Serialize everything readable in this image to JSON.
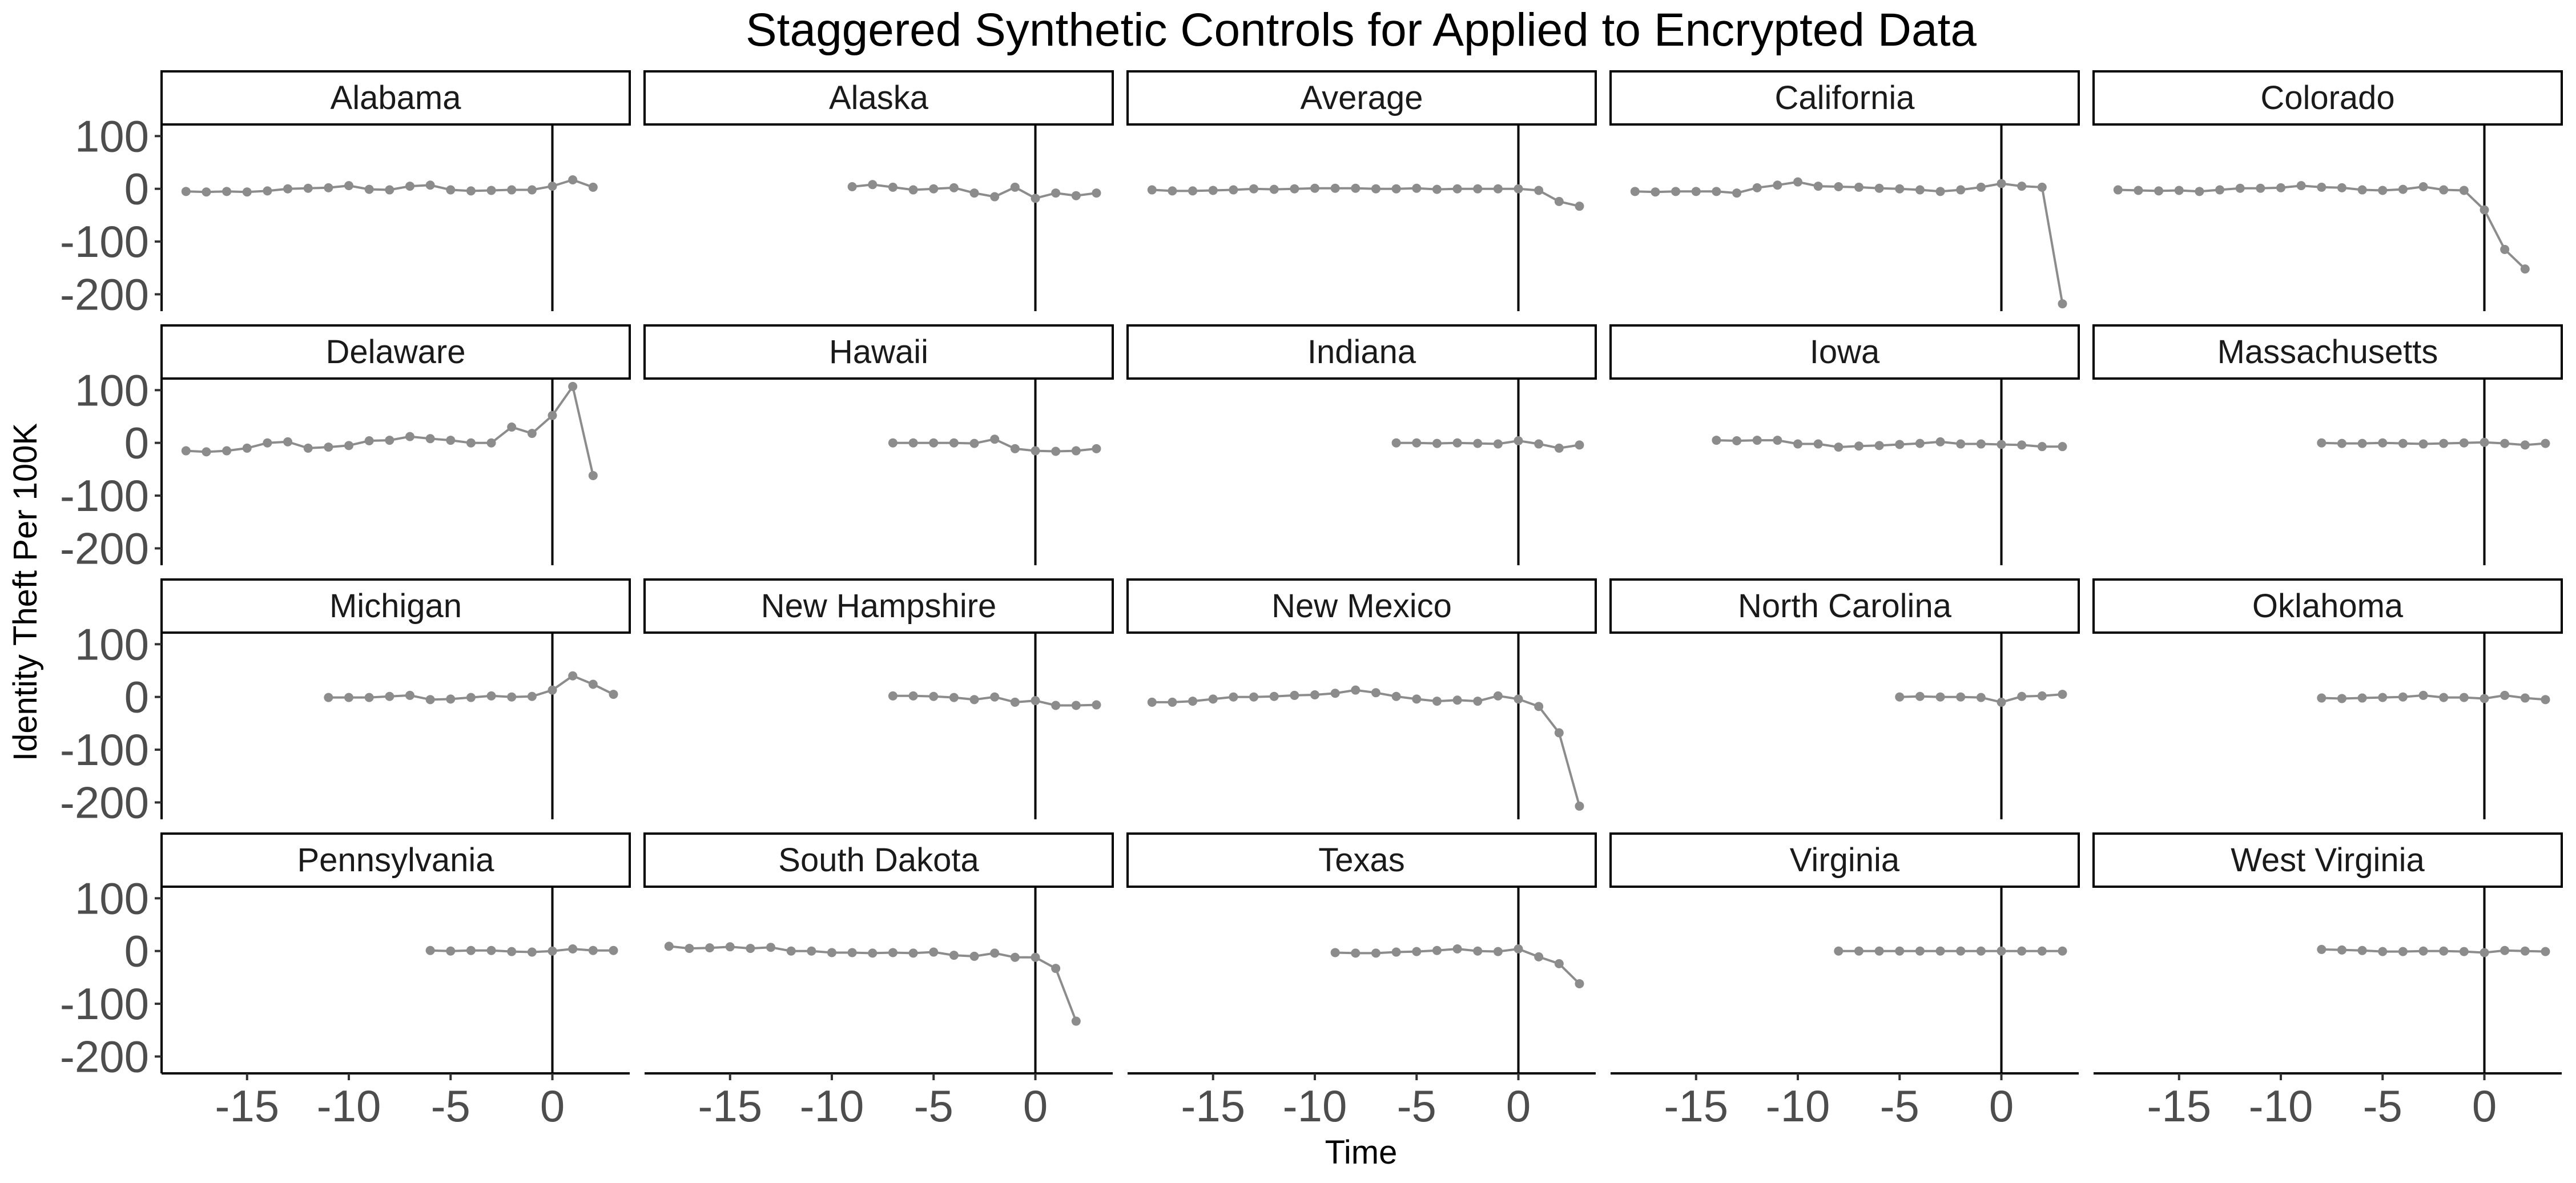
{
  "chart_data": {
    "type": "line",
    "title": "Staggered Synthetic Controls for Applied to Encrypted Data",
    "xlabel": "Time",
    "ylabel": "Identity Theft Per 100K",
    "xlim": [
      -19.2,
      3.8
    ],
    "ylim": [
      -232,
      122
    ],
    "x_ticks": [
      -15,
      -10,
      -5,
      0
    ],
    "x_tick_labels": [
      "-15",
      "-10",
      "-5",
      "0"
    ],
    "y_ticks": [
      100,
      0,
      -100,
      -200
    ],
    "y_tick_labels": [
      "100",
      "0",
      "-100",
      "-200"
    ],
    "reference_line_x": 0,
    "grid": false,
    "layout": {
      "rows": 4,
      "cols": 5
    },
    "series_color": "#8c8c8c",
    "panels": [
      {
        "name": "Alabama",
        "x": [
          -18,
          -17,
          -16,
          -15,
          -14,
          -13,
          -12,
          -11,
          -10,
          -9,
          -8,
          -7,
          -6,
          -5,
          -4,
          -3,
          -2,
          -1,
          0,
          1,
          2
        ],
        "y": [
          -5,
          -6,
          -5,
          -6,
          -4,
          0,
          1,
          2,
          6,
          -1,
          -2,
          5,
          7,
          -2,
          -4,
          -3,
          -2,
          -2,
          5,
          17,
          3
        ]
      },
      {
        "name": "Alaska",
        "x": [
          -9,
          -8,
          -7,
          -6,
          -5,
          -4,
          -3,
          -2,
          -1,
          0,
          1,
          2,
          3
        ],
        "y": [
          4,
          8,
          3,
          -2,
          0,
          2,
          -8,
          -15,
          3,
          -18,
          -8,
          -13,
          -8
        ]
      },
      {
        "name": "Average",
        "x": [
          -18,
          -17,
          -16,
          -15,
          -14,
          -13,
          -12,
          -11,
          -10,
          -9,
          -8,
          -7,
          -6,
          -5,
          -4,
          -3,
          -2,
          -1,
          0,
          1,
          2,
          3
        ],
        "y": [
          -2,
          -4,
          -4,
          -3,
          -2,
          0,
          -1,
          0,
          1,
          1,
          1,
          0,
          0,
          1,
          -1,
          0,
          0,
          0,
          0,
          -3,
          -24,
          -33
        ]
      },
      {
        "name": "California",
        "x": [
          -18,
          -17,
          -16,
          -15,
          -14,
          -13,
          -12,
          -11,
          -10,
          -9,
          -8,
          -7,
          -6,
          -5,
          -4,
          -3,
          -2,
          -1,
          0,
          1,
          2,
          3
        ],
        "y": [
          -5,
          -6,
          -5,
          -5,
          -5,
          -8,
          2,
          7,
          13,
          5,
          4,
          3,
          1,
          0,
          -2,
          -5,
          -2,
          3,
          10,
          5,
          3,
          -218
        ]
      },
      {
        "name": "Colorado",
        "x": [
          -18,
          -17,
          -16,
          -15,
          -14,
          -13,
          -12,
          -11,
          -10,
          -9,
          -8,
          -7,
          -6,
          -5,
          -4,
          -3,
          -2,
          -1,
          0,
          1,
          2
        ],
        "y": [
          -2,
          -3,
          -4,
          -3,
          -5,
          -2,
          1,
          1,
          2,
          6,
          3,
          2,
          -2,
          -3,
          -1,
          4,
          -2,
          -3,
          -40,
          -115,
          -152
        ]
      },
      {
        "name": "Delaware",
        "x": [
          -18,
          -17,
          -16,
          -15,
          -14,
          -13,
          -12,
          -11,
          -10,
          -9,
          -8,
          -7,
          -6,
          -5,
          -4,
          -3,
          -2,
          -1,
          0,
          1,
          2
        ],
        "y": [
          -15,
          -17,
          -15,
          -10,
          0,
          2,
          -10,
          -8,
          -5,
          4,
          5,
          12,
          8,
          5,
          0,
          0,
          30,
          18,
          52,
          107,
          -62
        ]
      },
      {
        "name": "Hawaii",
        "x": [
          -7,
          -6,
          -5,
          -4,
          -3,
          -2,
          -1,
          0,
          1,
          2,
          3
        ],
        "y": [
          0,
          0,
          0,
          0,
          -1,
          7,
          -11,
          -15,
          -16,
          -15,
          -11
        ]
      },
      {
        "name": "Indiana",
        "x": [
          -6,
          -5,
          -4,
          -3,
          -2,
          -1,
          0,
          1,
          2,
          3
        ],
        "y": [
          0,
          0,
          -1,
          0,
          -1,
          -2,
          4,
          -2,
          -10,
          -4
        ]
      },
      {
        "name": "Iowa",
        "x": [
          -14,
          -13,
          -12,
          -11,
          -10,
          -9,
          -8,
          -7,
          -6,
          -5,
          -4,
          -3,
          -2,
          -1,
          0,
          1,
          2,
          3
        ],
        "y": [
          5,
          4,
          5,
          5,
          -2,
          -2,
          -8,
          -6,
          -5,
          -3,
          -1,
          2,
          -2,
          -2,
          -3,
          -4,
          -7,
          -7
        ]
      },
      {
        "name": "Massachusetts",
        "x": [
          -8,
          -7,
          -6,
          -5,
          -4,
          -3,
          -2,
          -1,
          0,
          1,
          2,
          3
        ],
        "y": [
          0,
          -1,
          -1,
          0,
          -1,
          -2,
          -1,
          0,
          1,
          -1,
          -4,
          -1
        ]
      },
      {
        "name": "Michigan",
        "x": [
          -11,
          -10,
          -9,
          -8,
          -7,
          -6,
          -5,
          -4,
          -3,
          -2,
          -1,
          0,
          1,
          2,
          3
        ],
        "y": [
          -1,
          -1,
          -1,
          1,
          3,
          -5,
          -4,
          -1,
          2,
          0,
          1,
          13,
          40,
          24,
          5
        ]
      },
      {
        "name": "New Hampshire",
        "x": [
          -7,
          -6,
          -5,
          -4,
          -3,
          -2,
          -1,
          0,
          1,
          2,
          3
        ],
        "y": [
          2,
          2,
          1,
          -1,
          -5,
          0,
          -10,
          -7,
          -16,
          -16,
          -15
        ]
      },
      {
        "name": "New Mexico",
        "x": [
          -18,
          -17,
          -16,
          -15,
          -14,
          -13,
          -12,
          -11,
          -10,
          -9,
          -8,
          -7,
          -6,
          -5,
          -4,
          -3,
          -2,
          -1,
          0,
          1,
          2,
          3
        ],
        "y": [
          -10,
          -10,
          -8,
          -4,
          0,
          0,
          1,
          3,
          4,
          7,
          13,
          8,
          1,
          -4,
          -8,
          -6,
          -8,
          2,
          -4,
          -18,
          -68,
          -207
        ]
      },
      {
        "name": "North Carolina",
        "x": [
          -5,
          -4,
          -3,
          -2,
          -1,
          0,
          1,
          2,
          3
        ],
        "y": [
          0,
          1,
          0,
          0,
          -1,
          -10,
          1,
          2,
          5
        ]
      },
      {
        "name": "Oklahoma",
        "x": [
          -8,
          -7,
          -6,
          -5,
          -4,
          -3,
          -2,
          -1,
          0,
          1,
          2,
          3
        ],
        "y": [
          -2,
          -3,
          -2,
          -1,
          0,
          3,
          -1,
          -1,
          -3,
          3,
          -2,
          -5
        ]
      },
      {
        "name": "Pennsylvania",
        "x": [
          -6,
          -5,
          -4,
          -3,
          -2,
          -1,
          0,
          1,
          2,
          3
        ],
        "y": [
          1,
          0,
          1,
          1,
          -1,
          -2,
          0,
          4,
          1,
          1
        ]
      },
      {
        "name": "South Dakota",
        "x": [
          -18,
          -17,
          -16,
          -15,
          -14,
          -13,
          -12,
          -11,
          -10,
          -9,
          -8,
          -7,
          -6,
          -5,
          -4,
          -3,
          -2,
          -1,
          0,
          1,
          2
        ],
        "y": [
          9,
          5,
          6,
          8,
          5,
          7,
          0,
          0,
          -3,
          -3,
          -4,
          -3,
          -4,
          -2,
          -8,
          -10,
          -4,
          -12,
          -12,
          -33,
          -133
        ]
      },
      {
        "name": "Texas",
        "x": [
          -9,
          -8,
          -7,
          -6,
          -5,
          -4,
          -3,
          -2,
          -1,
          0,
          1,
          2,
          3
        ],
        "y": [
          -3,
          -4,
          -4,
          -2,
          -1,
          1,
          4,
          0,
          -1,
          4,
          -11,
          -24,
          -62
        ]
      },
      {
        "name": "Virginia",
        "x": [
          -8,
          -7,
          -6,
          -5,
          -4,
          -3,
          -2,
          -1,
          0,
          1,
          2,
          3
        ],
        "y": [
          0,
          0,
          0,
          0,
          0,
          0,
          0,
          0,
          0,
          0,
          0,
          0
        ]
      },
      {
        "name": "West Virginia",
        "x": [
          -8,
          -7,
          -6,
          -5,
          -4,
          -3,
          -2,
          -1,
          0,
          1,
          2,
          3
        ],
        "y": [
          3,
          2,
          1,
          -1,
          -1,
          0,
          0,
          -1,
          -3,
          1,
          0,
          -1
        ]
      }
    ]
  }
}
